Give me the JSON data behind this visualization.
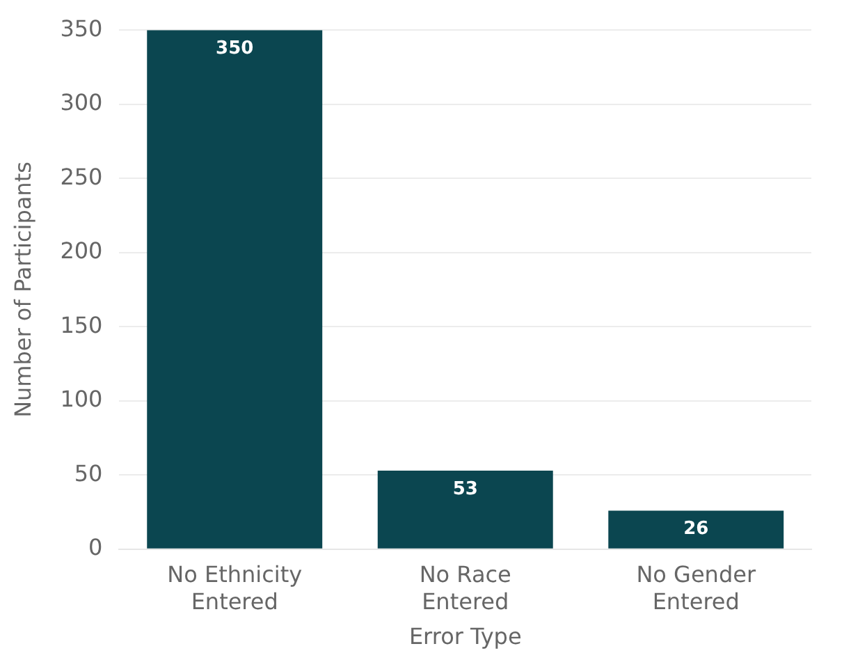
{
  "chart_data": {
    "type": "bar",
    "xlabel": "Error Type",
    "ylabel": "Number of Participants",
    "categories": [
      "No Ethnicity Entered",
      "No Race Entered",
      "No Gender Entered"
    ],
    "values": [
      350,
      53,
      26
    ],
    "color": "#0b4650",
    "ylim": [
      0,
      350
    ],
    "yticks": [
      0,
      50,
      100,
      150,
      200,
      250,
      300,
      350
    ],
    "grid": "y",
    "data_labels": true,
    "legend": false
  }
}
